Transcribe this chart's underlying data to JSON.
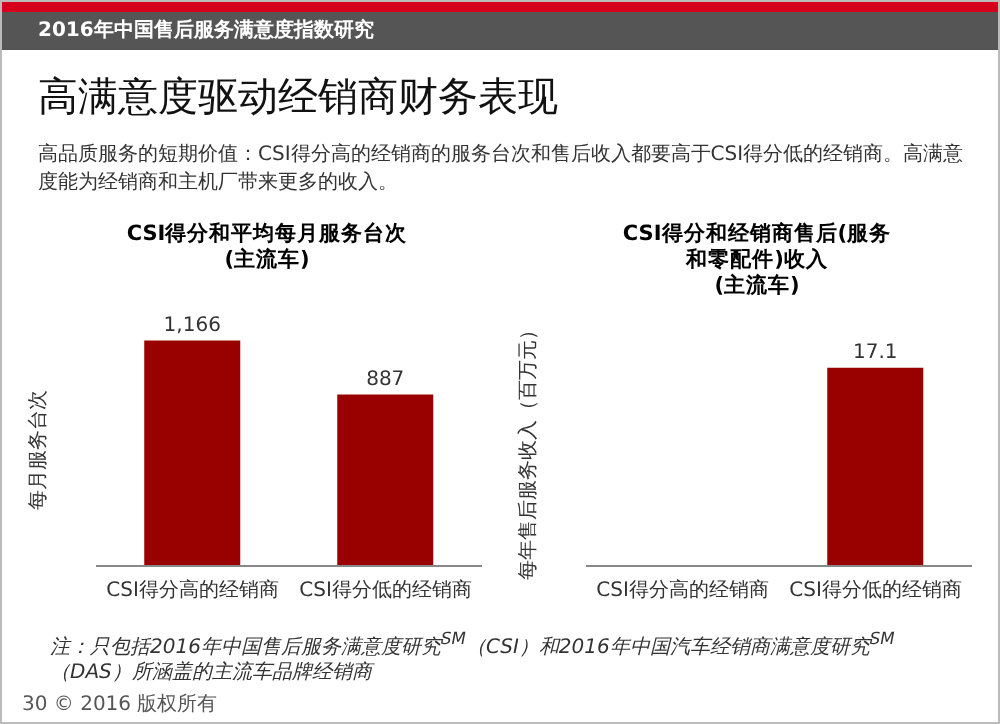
{
  "chart_data": [
    {
      "type": "other",
      "title": "高满意度驱动经销商财务表现",
      "subtitle": "高品质服务的短期价值：CSI得分高的经销商的服务台次和售后收入都要高于CSI得分低的经销商。高满意度能为经销商和主机厂带来更多的收入。",
      "annotations": [
        "2016年中国售后服务满意度指数研究",
        "注：只包括2016年中国售后服务满意度研究$^{SM}$（CSI）和2016年中国汽车经销商满意度研究$^{SM}$（DAS）所涵盖的主流车品牌经销商",
        "30  © 2016 版权所有"
      ]
    },
    {
      "type": "bar",
      "title": "CSI得分和平均每月服务台次\n(主流车)",
      "ylabel": "每月服务台次",
      "categories": [
        "CSI得分高的经销商",
        "CSI得分低的经销商"
      ],
      "values": [
        1166,
        887
      ],
      "value_labels": [
        "1,166",
        "887"
      ],
      "color": "#990000",
      "grid": false,
      "legend": false,
      "tick_labels": "x"
    },
    {
      "type": "bar",
      "title": "CSI得分和经销商售后(服务和零配件)收入\n(主流车)",
      "ylabel": "每年售后服务收入（百万元）",
      "categories": [
        "CSI得分高的经销商",
        "CSI得分低的经销商"
      ],
      "values": [
        null,
        17.1
      ],
      "value_labels": [
        null,
        "17.1"
      ],
      "color": "#990000",
      "grid": false,
      "legend": false,
      "tick_labels": "x"
    }
  ]
}
